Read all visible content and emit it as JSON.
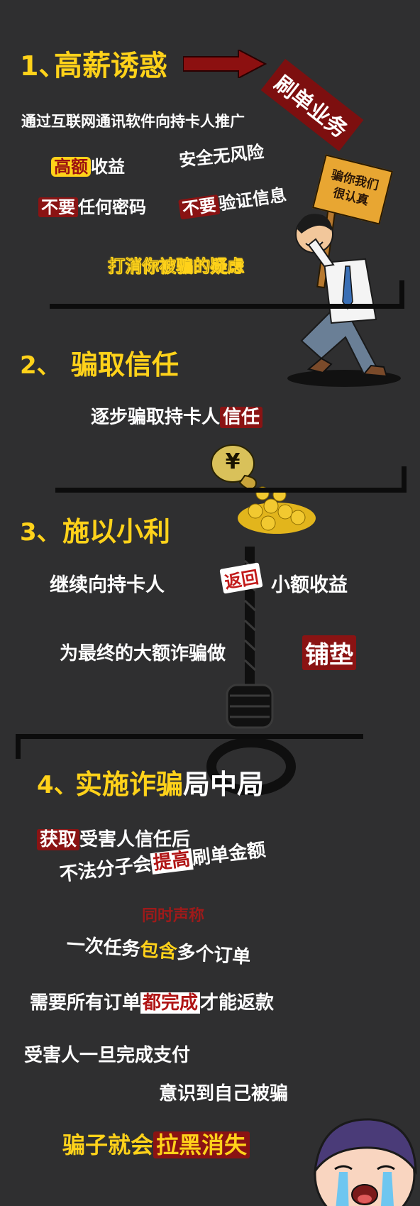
{
  "section1": {
    "number": "1、",
    "title": "高薪诱惑",
    "line1": "通过互联网通讯软件向持卡人推广",
    "stamp": "刷单业务",
    "high": "高额",
    "income": "收益",
    "safe": "安全无风险",
    "no1": "不要",
    "pw": "任何密码",
    "no2": "不要",
    "verify": "验证信息",
    "doubt": "打消你被骗的疑虑",
    "sign_line1": "骗你我们",
    "sign_line2": "很认真"
  },
  "section2": {
    "number": "2、",
    "title": "骗取信任",
    "line1_pre": "逐步骗取持卡人",
    "line1_hl": "信任",
    "bag_label": "¥"
  },
  "section3": {
    "number": "3、",
    "title": "施以小利",
    "line1_pre": "继续向持卡人",
    "return": "返回",
    "line1_post": "小额收益",
    "line2_pre": "为最终的大额诈骗做",
    "line2_hl": "铺垫"
  },
  "section4": {
    "number": "4、",
    "title_yellow": "实施诈骗",
    "title_white": "局中局",
    "l1_hl": "获取",
    "l1": "受害人信任后",
    "l2_pre": "不法分子会",
    "l2_hl": "提高",
    "l2_post": "刷单金额",
    "l3_red": "同时声称",
    "l4_pre": "一次任务",
    "l4_hl": "包含",
    "l4_post": "多个订单",
    "l5_pre": "需要所有订单",
    "l5_hl": "都完成",
    "l5_post": "才能返款",
    "l6": "受害人一旦完成支付",
    "l7": "意识到自己被骗",
    "l8_pre": "骗子就会",
    "l8_hl": "拉黑消失"
  },
  "colors": {
    "yellow": "#ffd21a",
    "red": "#8a1313",
    "bg": "#2f2f30"
  }
}
